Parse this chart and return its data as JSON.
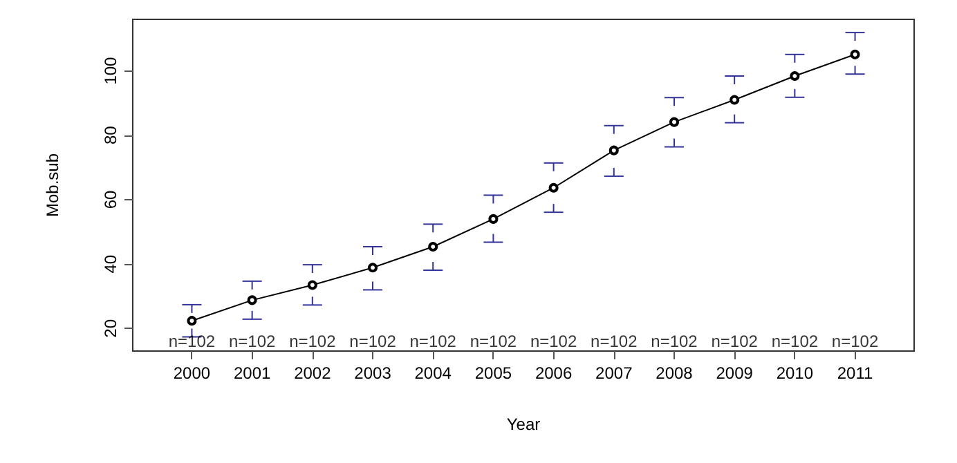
{
  "chart_data": {
    "type": "line",
    "xlabel": "Year",
    "ylabel": "Mob.sub",
    "categories": [
      "2000",
      "2001",
      "2002",
      "2003",
      "2004",
      "2005",
      "2006",
      "2007",
      "2008",
      "2009",
      "2010",
      "2011"
    ],
    "series": [
      {
        "color": "#000000",
        "values": [
          22.4,
          28.8,
          33.5,
          38.9,
          45.4,
          54.0,
          63.7,
          75.3,
          84.1,
          91.0,
          98.4,
          105.1
        ],
        "errors": [
          [
            17.4,
            27.4
          ],
          [
            22.9,
            34.7
          ],
          [
            27.3,
            39.8
          ],
          [
            32.0,
            45.4
          ],
          [
            38.1,
            52.4
          ],
          [
            46.8,
            61.4
          ],
          [
            56.1,
            71.4
          ],
          [
            67.3,
            83.0
          ],
          [
            76.4,
            91.7
          ],
          [
            83.9,
            98.4
          ],
          [
            91.8,
            105.1
          ],
          [
            99.0,
            111.9
          ]
        ]
      }
    ],
    "ylim": [
      13,
      116
    ],
    "yticks": [
      20,
      40,
      60,
      80,
      100
    ],
    "marker": "circle",
    "line_style": "solid",
    "annotations": [
      "n=102",
      "n=102",
      "n=102",
      "n=102",
      "n=102",
      "n=102",
      "n=102",
      "n=102",
      "n=102",
      "n=102",
      "n=102",
      "n=102"
    ]
  }
}
